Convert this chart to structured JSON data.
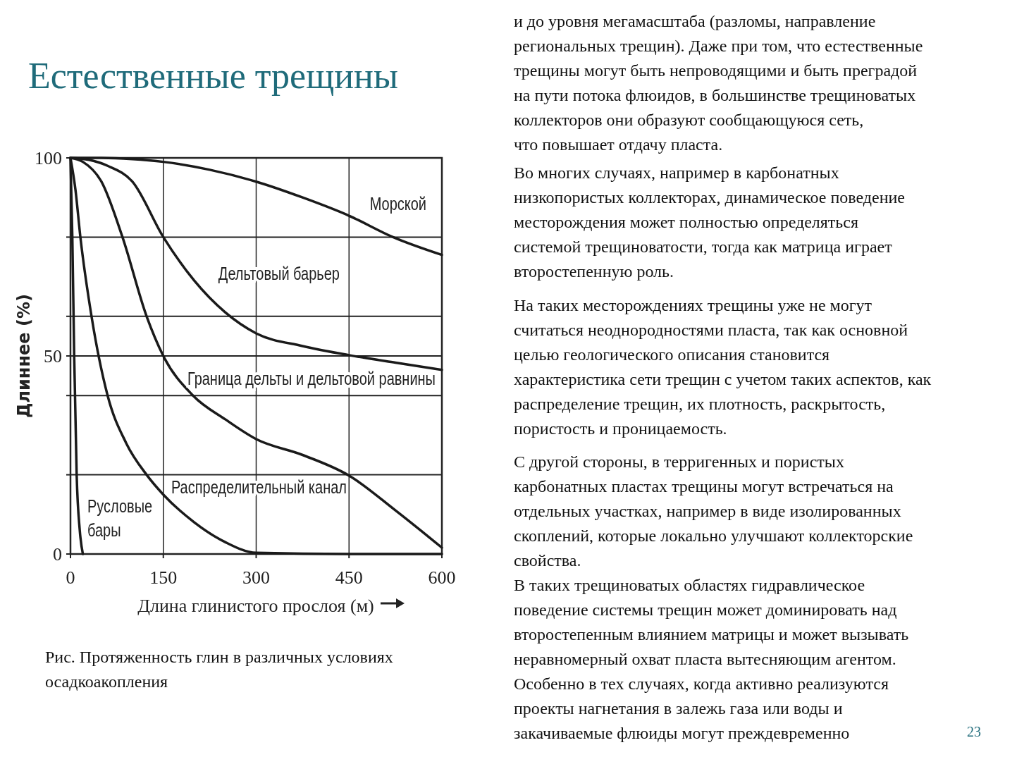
{
  "chart_data": {
    "type": "line",
    "title": "Естественные трещины",
    "xlabel": "Длина глинистого прослоя (м)",
    "ylabel": "Длиннее (%)",
    "xlim": [
      0,
      600
    ],
    "xticks": [
      0,
      150,
      300,
      450,
      600
    ],
    "ylim": [
      0,
      100
    ],
    "yticks": [
      0,
      {
        "value": 20,
        "label": null
      },
      {
        "value": 40,
        "label": null
      },
      50,
      {
        "value": 60,
        "label": null
      },
      {
        "value": 80,
        "label": null
      },
      100
    ],
    "grid": true,
    "marker": "none",
    "line_style": "solid",
    "series": [
      {
        "name": "Морской",
        "color": "#1a1a1a",
        "x": [
          0,
          50,
          100,
          150,
          225,
          300,
          375,
          450,
          521,
          600
        ],
        "values": [
          100,
          100,
          99.7,
          99,
          97,
          94,
          90,
          85.4,
          80,
          75.5
        ]
      },
      {
        "name": "Дельтовый барьер",
        "color": "#1a1a1a",
        "x": [
          0,
          30,
          60,
          100,
          150,
          200,
          250,
          300,
          375,
          450,
          525,
          600
        ],
        "values": [
          100,
          99.5,
          98,
          94,
          80,
          69,
          61,
          55.7,
          52.5,
          50.2,
          48.3,
          46.5
        ]
      },
      {
        "name": "Граница дельты и дельтовой равнины",
        "color": "#1a1a1a",
        "x": [
          0,
          20,
          50,
          84,
          123,
          150,
          198,
          250,
          300,
          375,
          450,
          525,
          600
        ],
        "values": [
          100,
          99,
          94,
          80,
          60,
          50,
          40,
          34,
          29,
          25,
          19.8,
          11,
          1.6
        ]
      },
      {
        "name": "Распределительный канал",
        "color": "#1a1a1a",
        "x": [
          0,
          8,
          16,
          34,
          60,
          90,
          123,
          150,
          200,
          250,
          300,
          450,
          600
        ],
        "values": [
          100,
          92,
          80,
          60,
          40,
          28,
          20,
          15,
          8,
          3,
          0.3,
          0,
          0
        ]
      },
      {
        "name": "Русловые\nбары",
        "color": "#1a1a1a",
        "x": [
          0,
          3,
          6,
          10,
          15,
          20
        ],
        "values": [
          100,
          80,
          50,
          20,
          6,
          0
        ]
      }
    ],
    "annotations": [
      "Рис. Протяженность глин в различных условиях\nосадкоакопления",
      "и до уровня мегамасштаба (разломы, направление\nрегиональных трещин). Даже при том, что естественные\nтрещины могут быть непроводящими и быть преградой\nна пути потока флюидов, в большинстве трещиноватых\nколлекторов они образуют сообщающуюся сеть,\nчто повышает отдачу пласта.",
      "Во многих случаях, например в карбонатных\nнизкопористых коллекторах, динамическое поведение\nместорождения может полностью определяться\nсистемой трещиноватости, тогда как матрица играет\nвторостепенную роль.",
      "На таких месторождениях трещины уже не могут\nсчитаться неоднородностями пласта, так как основной\nцелью геологического описания становится\nхарактеристика сети трещин с учетом таких аспектов, как\nраспределение трещин, их плотность, раскрытость,\nпористость и проницаемость.",
      "С другой стороны, в терригенных и пористых\nкарбонатных пластах трещины могут встречаться на\nотдельных участках, например в виде изолированных\nскоплений, которые локально улучшают коллекторские\nсвойства.\nВ таких трещиноватых областях гидравлическое\nповедение системы трещин может доминировать над\nвторостепенным влиянием матрицы и может вызывать\nнеравномерный охват пласта вытесняющим агентом.\nОсобенно в тех случаях, когда активно реализуются\nпроекты нагнетания в залежь газа или воды и\nзакачиваемые флюиды могут преждевременно",
      "23"
    ]
  }
}
